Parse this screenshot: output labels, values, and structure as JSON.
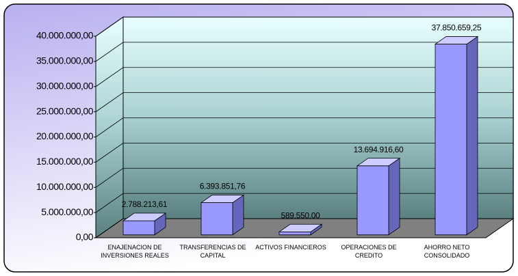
{
  "chart_data": {
    "type": "bar3d",
    "categories": [
      "ENAJENACION DE INVERSIONES REALES",
      "TRANSFERENCIAS DE CAPITAL",
      "ACTIVOS FINANCIEROS",
      "OPERACIONES DE CREDITO",
      "AHORRO NETO CONSOLIDADO"
    ],
    "values": [
      2788213.61,
      6393851.76,
      589550.0,
      13694916.6,
      37850659.25
    ],
    "value_labels": [
      "2.788.213,61",
      "6.393.851,76",
      "589.550,00",
      "13.694.916,60",
      "37.850.659,25"
    ],
    "color": "#9999ff",
    "ylim": [
      0,
      40000000
    ],
    "yticks": [
      {
        "value": 0,
        "label": "0,00"
      },
      {
        "value": 5000000,
        "label": "5.000.000,00"
      },
      {
        "value": 10000000,
        "label": "10.000.000,00"
      },
      {
        "value": 15000000,
        "label": "15.000.000,00"
      },
      {
        "value": 20000000,
        "label": "20.000.000,00"
      },
      {
        "value": 25000000,
        "label": "25.000.000,00"
      },
      {
        "value": 30000000,
        "label": "30.000.000,00"
      },
      {
        "value": 35000000,
        "label": "35.000.000,00"
      },
      {
        "value": 40000000,
        "label": "40.000.000,00"
      }
    ],
    "grid": true
  }
}
